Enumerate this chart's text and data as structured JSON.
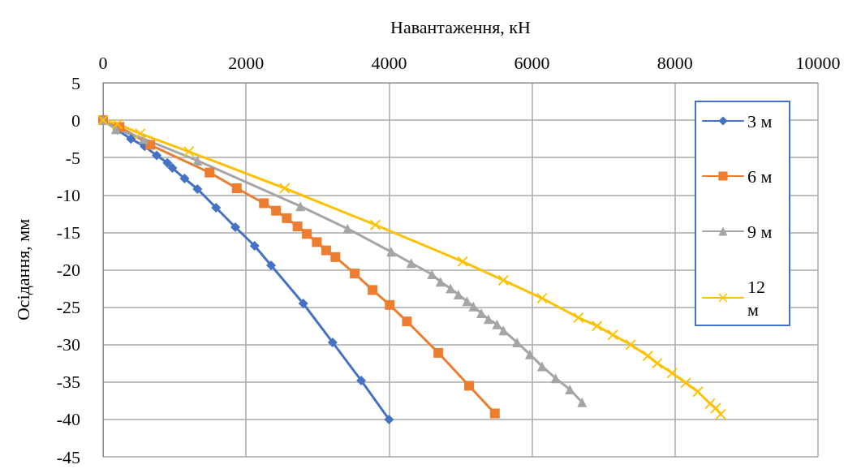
{
  "chart_data": {
    "type": "line",
    "xlabel": "Навантаження, кН",
    "ylabel": "Осідання, мм",
    "xlim": [
      0,
      10000
    ],
    "xticks": [
      0,
      2000,
      4000,
      6000,
      8000,
      10000
    ],
    "ylim": [
      -45,
      5
    ],
    "yticks": [
      5,
      0,
      -5,
      -10,
      -15,
      -20,
      -25,
      -30,
      -35,
      -40,
      -45
    ],
    "grid": true,
    "legend": "top right",
    "line_style": "solid",
    "series": [
      {
        "name": "3 м",
        "color": "#4472c4",
        "marker": "diamond",
        "x": [
          0,
          200,
          390,
          580,
          750,
          900,
          970,
          1140,
          1320,
          1580,
          1850,
          2120,
          2350,
          2800,
          3210,
          3610,
          4000
        ],
        "values": [
          0,
          -1.3,
          -2.5,
          -3.5,
          -4.7,
          -5.7,
          -6.4,
          -7.8,
          -9.2,
          -11.7,
          -14.3,
          -16.8,
          -19.4,
          -24.5,
          -29.7,
          -34.8,
          -40
        ]
      },
      {
        "name": "6 м",
        "color": "#ed7d31",
        "marker": "square",
        "x": [
          0,
          230,
          660,
          1490,
          1870,
          2250,
          2420,
          2570,
          2720,
          2850,
          2990,
          3120,
          3250,
          3520,
          3770,
          4010,
          4250,
          4690,
          5120,
          5480
        ],
        "values": [
          0,
          -0.9,
          -3.3,
          -7,
          -9.1,
          -11.1,
          -12.1,
          -13.1,
          -14.2,
          -15.2,
          -16.3,
          -17.4,
          -18.3,
          -20.5,
          -22.7,
          -24.7,
          -26.9,
          -31.1,
          -35.5,
          -39.2
        ]
      },
      {
        "name": "9 м",
        "color": "#a5a5a5",
        "marker": "triangle",
        "x": [
          0,
          180,
          570,
          1320,
          2760,
          3420,
          4030,
          4310,
          4600,
          4720,
          4860,
          4970,
          5090,
          5180,
          5290,
          5390,
          5510,
          5600,
          5790,
          5970,
          6140,
          6330,
          6530,
          6700
        ],
        "values": [
          0,
          -1.2,
          -2.5,
          -5.4,
          -11.5,
          -14.5,
          -17.6,
          -19.1,
          -20.6,
          -21.6,
          -22.5,
          -23.3,
          -24.2,
          -24.9,
          -25.8,
          -26.6,
          -27.3,
          -28.1,
          -29.7,
          -31.3,
          -32.9,
          -34.5,
          -36,
          -37.7
        ]
      },
      {
        "name": "12 м",
        "color": "#ffc000",
        "marker": "cross",
        "x": [
          0,
          200,
          520,
          1200,
          2540,
          3810,
          5030,
          5600,
          6140,
          6650,
          6910,
          7130,
          7380,
          7620,
          7750,
          7960,
          8150,
          8320,
          8490,
          8570,
          8640
        ],
        "values": [
          0,
          -0.5,
          -1.8,
          -4.2,
          -9.1,
          -14,
          -18.9,
          -21.4,
          -23.8,
          -26.4,
          -27.5,
          -28.7,
          -30,
          -31.5,
          -32.5,
          -33.8,
          -35.1,
          -36.3,
          -37.9,
          -38.5,
          -39.3
        ]
      }
    ]
  }
}
